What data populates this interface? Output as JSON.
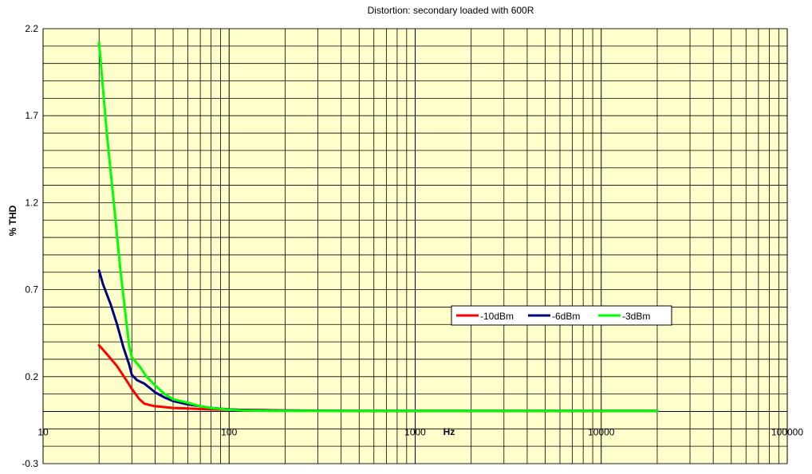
{
  "chart_data": {
    "type": "line",
    "title": "Distortion: secondary loaded with 600R",
    "xlabel": "Hz",
    "ylabel": "% THD",
    "x_scale": "log",
    "xlim": [
      10,
      100000
    ],
    "ylim": [
      -0.3,
      2.2
    ],
    "x_tick_labels": [
      "10",
      "100",
      "1000",
      "10000",
      "100000"
    ],
    "y_tick_labels": [
      "2.2",
      "1.7",
      "1.2",
      "0.7",
      "0.2",
      "-0.3"
    ],
    "grid": true,
    "legend_position": "center-right",
    "series": [
      {
        "name": "-10dBm",
        "color": "#ff0000",
        "x": [
          20,
          22,
          25,
          28,
          30,
          33,
          35,
          38,
          40,
          45,
          50,
          60,
          70,
          80,
          100,
          150,
          200,
          500,
          1000,
          5000,
          10000,
          20000
        ],
        "y": [
          0.38,
          0.33,
          0.26,
          0.18,
          0.13,
          0.07,
          0.045,
          0.035,
          0.03,
          0.025,
          0.02,
          0.017,
          0.014,
          0.012,
          0.01,
          0.008,
          0.006,
          0.003,
          0.003,
          0.003,
          0.003,
          0.003
        ]
      },
      {
        "name": "-6dBm",
        "color": "#000080",
        "x": [
          20,
          21,
          23,
          25,
          27,
          29,
          30,
          32,
          35,
          38,
          40,
          45,
          50,
          60,
          70,
          80,
          100,
          120,
          150,
          200,
          500,
          1000,
          5000,
          10000,
          20000
        ],
        "y": [
          0.81,
          0.73,
          0.62,
          0.5,
          0.37,
          0.27,
          0.21,
          0.18,
          0.16,
          0.13,
          0.11,
          0.08,
          0.06,
          0.04,
          0.03,
          0.02,
          0.012,
          0.008,
          0.006,
          0.005,
          0.003,
          0.003,
          0.003,
          0.003,
          0.003
        ]
      },
      {
        "name": "-3dBm",
        "color": "#00ff00",
        "x": [
          20,
          21,
          22,
          24,
          26,
          28,
          29,
          30,
          33,
          36,
          40,
          45,
          50,
          60,
          70,
          80,
          100,
          120,
          150,
          200,
          500,
          1000,
          5000,
          10000,
          20000
        ],
        "y": [
          2.12,
          1.85,
          1.6,
          1.2,
          0.82,
          0.52,
          0.38,
          0.31,
          0.26,
          0.2,
          0.15,
          0.1,
          0.07,
          0.05,
          0.03,
          0.02,
          0.01,
          0.006,
          0.004,
          0.003,
          0.003,
          0.003,
          0.003,
          0.003,
          0.003
        ]
      }
    ]
  }
}
